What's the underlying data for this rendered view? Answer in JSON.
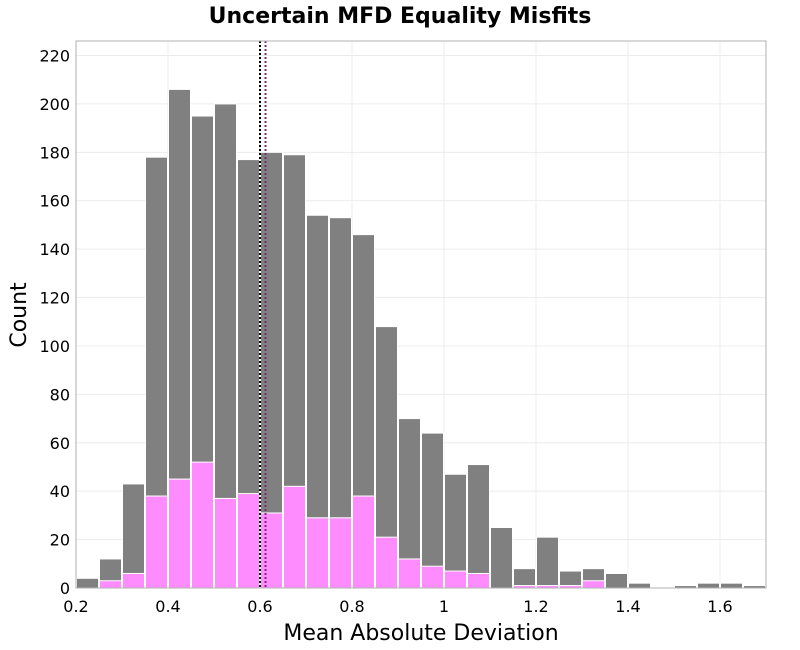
{
  "chart_data": {
    "type": "bar",
    "title": "Uncertain MFD Equality Misfits",
    "xlabel": "Mean Absolute Deviation",
    "ylabel": "Count",
    "xlim": [
      0.2,
      1.7
    ],
    "ylim": [
      0,
      226
    ],
    "xticks": [
      0.2,
      0.4,
      0.6,
      0.8,
      1,
      1.2,
      1.4,
      1.6
    ],
    "xtick_labels": [
      "0.2",
      "0.4",
      "0.6",
      "0.8",
      "1",
      "1.2",
      "1.4",
      "1.6"
    ],
    "yticks": [
      0,
      20,
      40,
      60,
      80,
      100,
      120,
      140,
      160,
      180,
      200,
      220
    ],
    "ytick_labels": [
      "0",
      "20",
      "40",
      "60",
      "80",
      "100",
      "120",
      "140",
      "160",
      "180",
      "200",
      "220"
    ],
    "bin_width": 0.05,
    "bin_starts": [
      0.2,
      0.25,
      0.3,
      0.35,
      0.4,
      0.45,
      0.5,
      0.55,
      0.6,
      0.65,
      0.7,
      0.75,
      0.8,
      0.85,
      0.9,
      0.95,
      1.0,
      1.05,
      1.1,
      1.15,
      1.2,
      1.25,
      1.3,
      1.35,
      1.4,
      1.45,
      1.5,
      1.55,
      1.6,
      1.65
    ],
    "grid": true,
    "series": [
      {
        "color": "#808080",
        "values": [
          4,
          12,
          43,
          178,
          206,
          195,
          200,
          177,
          180,
          179,
          154,
          153,
          146,
          108,
          70,
          64,
          47,
          51,
          25,
          8,
          21,
          7,
          8,
          6,
          2,
          0,
          1,
          2,
          2,
          1
        ]
      },
      {
        "color": "#ff8cff",
        "values": [
          0,
          3,
          6,
          38,
          45,
          52,
          37,
          39,
          31,
          42,
          29,
          29,
          38,
          21,
          12,
          9,
          7,
          6,
          0,
          1,
          1,
          1,
          3,
          0,
          0,
          0,
          0,
          0,
          0,
          0
        ]
      }
    ],
    "reference_lines": [
      {
        "x": 0.6,
        "color": "#000000",
        "style": "dotted"
      },
      {
        "x": 0.612,
        "color": "#7a2a7a",
        "style": "dotted"
      }
    ]
  }
}
